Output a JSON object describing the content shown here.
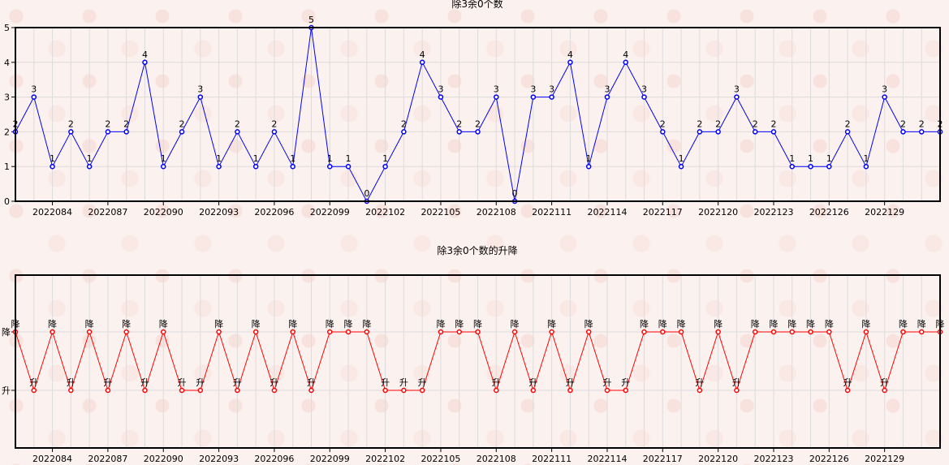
{
  "colors": {
    "series1": "#0000ff",
    "series2": "#ff0000"
  },
  "chart_data": [
    {
      "type": "line",
      "title": "除3余0个数",
      "xlabel": "",
      "ylabel": "",
      "ylim": [
        0,
        5
      ],
      "y_ticks": [
        "0",
        "1",
        "2",
        "3",
        "4",
        "5"
      ],
      "grid": true,
      "x": [
        "2022082",
        "2022083",
        "2022084",
        "2022085",
        "2022086",
        "2022087",
        "2022088",
        "2022089",
        "2022090",
        "2022091",
        "2022092",
        "2022093",
        "2022094",
        "2022095",
        "2022096",
        "2022097",
        "2022098",
        "2022099",
        "2022100",
        "2022101",
        "2022102",
        "2022103",
        "2022104",
        "2022105",
        "2022106",
        "2022107",
        "2022108",
        "2022109",
        "2022110",
        "2022111",
        "2022112",
        "2022113",
        "2022114",
        "2022115",
        "2022116",
        "2022117",
        "2022118",
        "2022119",
        "2022120",
        "2022121",
        "2022122",
        "2022123",
        "2022124",
        "2022125",
        "2022126",
        "2022127",
        "2022128",
        "2022129",
        "2022130",
        "2022131",
        "2022132"
      ],
      "x_tick_labels": [
        "2022084",
        "2022087",
        "2022090",
        "2022093",
        "2022096",
        "2022099",
        "2022102",
        "2022105",
        "2022108",
        "2022111",
        "2022114",
        "2022117",
        "2022120",
        "2022123",
        "2022126",
        "2022129"
      ],
      "values": [
        2,
        3,
        1,
        2,
        1,
        2,
        2,
        4,
        1,
        2,
        3,
        1,
        2,
        1,
        2,
        1,
        5,
        1,
        1,
        0,
        1,
        2,
        4,
        3,
        2,
        2,
        3,
        0,
        3,
        3,
        4,
        1,
        3,
        4,
        3,
        2,
        1,
        2,
        2,
        3,
        2,
        2,
        1,
        1,
        1,
        2,
        1,
        3,
        2,
        2,
        2
      ],
      "data_labels": [
        "2",
        "3",
        "1",
        "2",
        "1",
        "2",
        "2",
        "4",
        "1",
        "2",
        "3",
        "1",
        "2",
        "1",
        "2",
        "1",
        "5",
        "1",
        "1",
        "0",
        "1",
        "2",
        "4",
        "3",
        "2",
        "2",
        "3",
        "0",
        "3",
        "3",
        "4",
        "1",
        "3",
        "4",
        "3",
        "2",
        "1",
        "2",
        "2",
        "3",
        "2",
        "2",
        "1",
        "1",
        "1",
        "2",
        "1",
        "3",
        "2",
        "2",
        "2"
      ]
    },
    {
      "type": "line",
      "title": "除3余0个数的升降",
      "xlabel": "",
      "ylabel": "",
      "y_categories": [
        "升",
        "降"
      ],
      "grid": true,
      "x_tick_labels": [
        "2022084",
        "2022087",
        "2022090",
        "2022093",
        "2022096",
        "2022099",
        "2022102",
        "2022105",
        "2022108",
        "2022111",
        "2022114",
        "2022117",
        "2022120",
        "2022123",
        "2022126",
        "2022129"
      ],
      "values": [
        "降",
        "升",
        "降",
        "升",
        "降",
        "升",
        "降",
        "升",
        "降",
        "升",
        "升",
        "降",
        "升",
        "降",
        "升",
        "降",
        "升",
        "降",
        "降",
        "降",
        "升",
        "升",
        "升",
        "降",
        "降",
        "降",
        "升",
        "降",
        "升",
        "降",
        "升",
        "降",
        "升",
        "升",
        "降",
        "降",
        "降",
        "升",
        "降",
        "升",
        "降",
        "降",
        "降",
        "降",
        "降",
        "升",
        "降",
        "升",
        "降",
        "降",
        "降"
      ]
    }
  ]
}
